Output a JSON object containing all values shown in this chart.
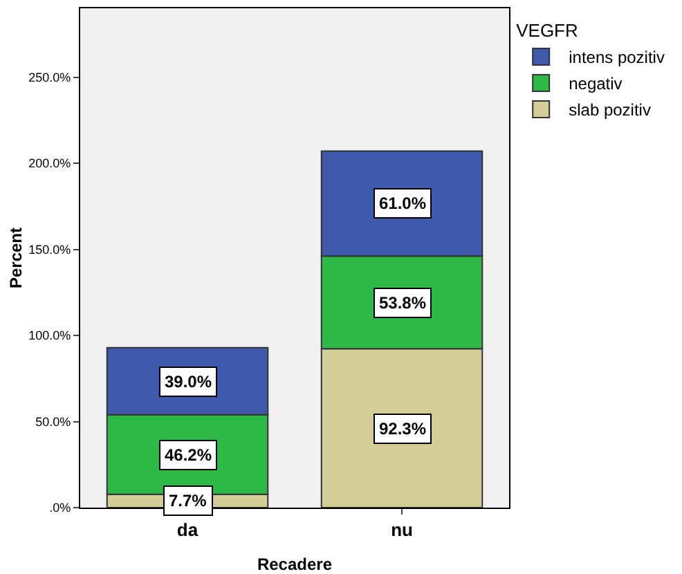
{
  "chart_data": {
    "type": "bar",
    "stacked": true,
    "xlabel": "Recadere",
    "ylabel": "Percent",
    "legend_title": "VEGFR",
    "legend": "right",
    "grid": false,
    "data_labels": true,
    "categories": [
      "da",
      "nu"
    ],
    "ylim": [
      0,
      290
    ],
    "yticks": [
      {
        "value": 0,
        "label": ".0%"
      },
      {
        "value": 50,
        "label": "50.0%"
      },
      {
        "value": 100,
        "label": "100.0%"
      },
      {
        "value": 150,
        "label": "150.0%"
      },
      {
        "value": 200,
        "label": "200.0%"
      },
      {
        "value": 250,
        "label": "250.0%"
      }
    ],
    "series": [
      {
        "name": "slab pozitiv",
        "color": "#d3ce97",
        "values": [
          7.7,
          92.3
        ],
        "value_labels": [
          "7.7%",
          "92.3%"
        ]
      },
      {
        "name": "negativ",
        "color": "#2eb848",
        "values": [
          46.2,
          53.8
        ],
        "value_labels": [
          "46.2%",
          "53.8%"
        ]
      },
      {
        "name": "intens pozitiv",
        "color": "#3e58ac",
        "values": [
          39.0,
          61.0
        ],
        "value_labels": [
          "39.0%",
          "61.0%"
        ]
      }
    ]
  }
}
